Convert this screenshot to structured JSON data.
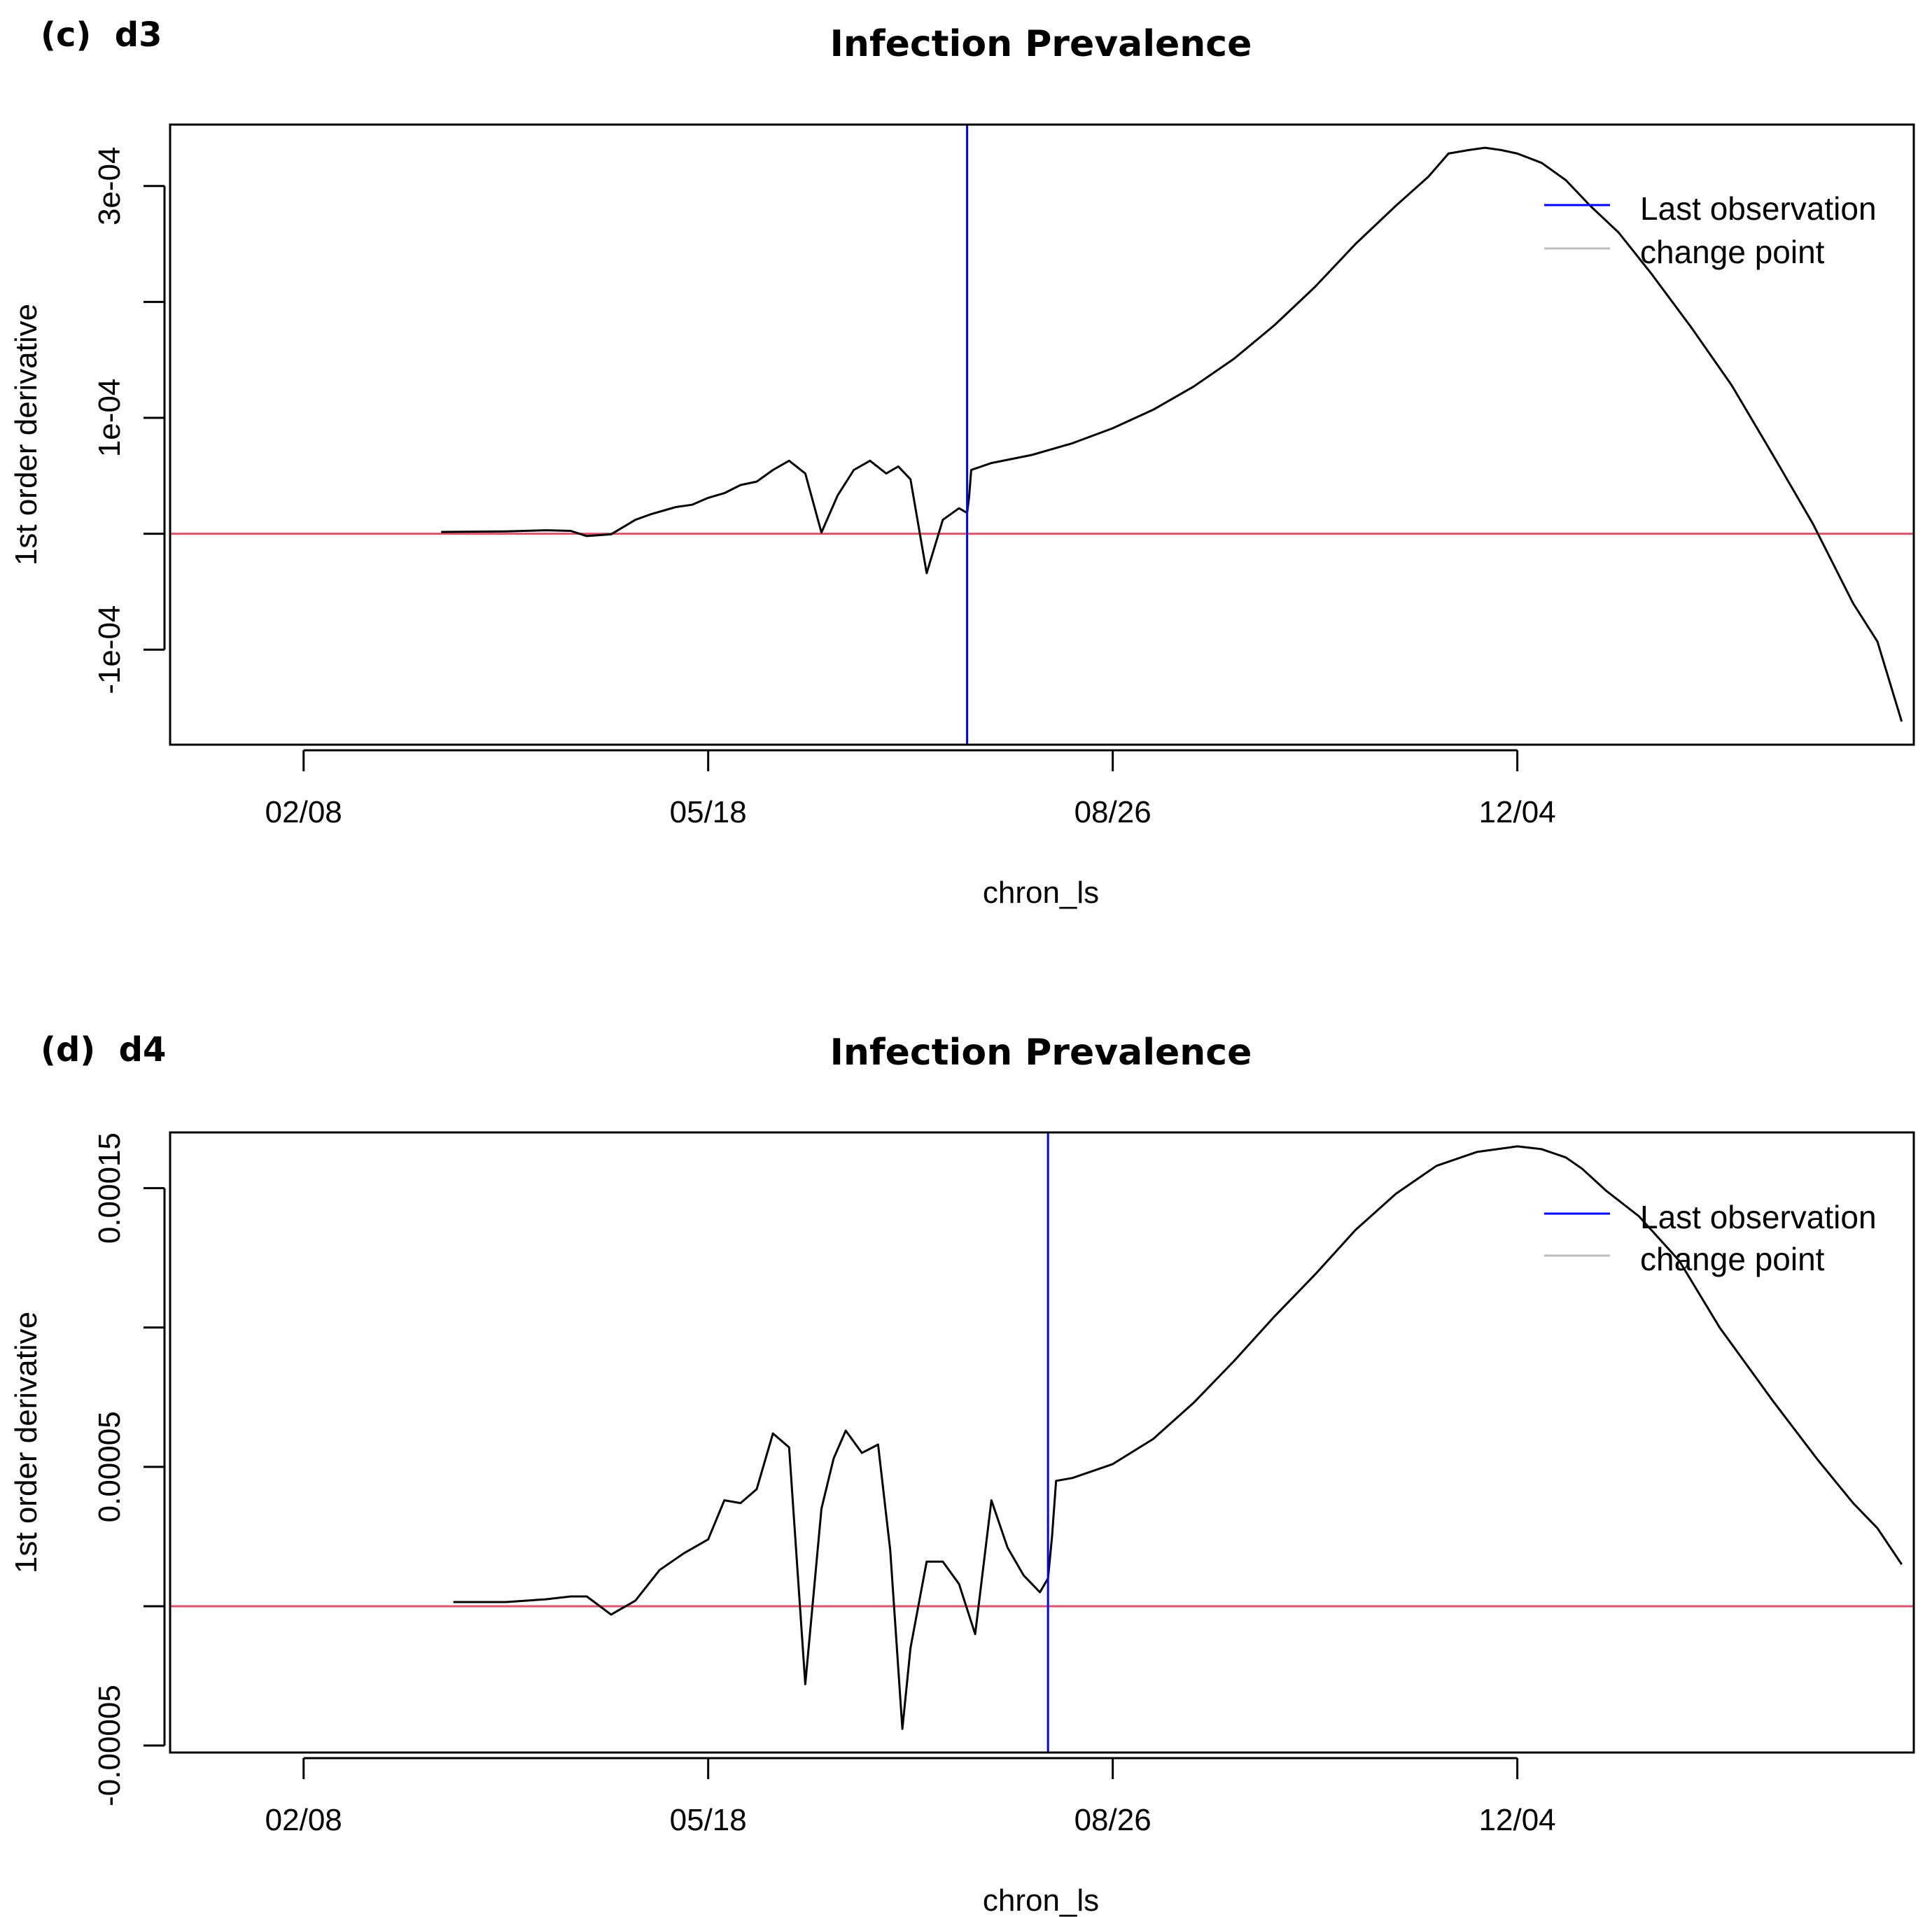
{
  "panels": [
    {
      "panel_label": "(c)  d3",
      "title": "Infection Prevalence",
      "xlabel": "chron_ls",
      "ylabel": "1st order derivative",
      "x_ticks": [
        {
          "value": 0,
          "label": "02/08"
        },
        {
          "value": 100,
          "label": "05/18"
        },
        {
          "value": 200,
          "label": "08/26"
        },
        {
          "value": 300,
          "label": "12/04"
        }
      ],
      "y_ticks": [
        {
          "value": -0.0001,
          "label": "-1e-04"
        },
        {
          "value": 0.0001,
          "label": "1e-04"
        },
        {
          "value": 0.0003,
          "label": "3e-04"
        }
      ],
      "legend": [
        {
          "label": "Last observation",
          "color": "#0000ff"
        },
        {
          "label": "change point",
          "color": "#bebebe"
        }
      ]
    },
    {
      "panel_label": "(d)  d4",
      "title": "Infection Prevalence",
      "xlabel": "chron_ls",
      "ylabel": "1st order derivative",
      "x_ticks": [
        {
          "value": 0,
          "label": "02/08"
        },
        {
          "value": 100,
          "label": "05/18"
        },
        {
          "value": 200,
          "label": "08/26"
        },
        {
          "value": 300,
          "label": "12/04"
        }
      ],
      "y_ticks": [
        {
          "value": -5e-05,
          "label": "-0.00005"
        },
        {
          "value": 5e-05,
          "label": "0.00005"
        },
        {
          "value": 0.00015,
          "label": "0.00015"
        }
      ],
      "legend": [
        {
          "label": "Last observation",
          "color": "#0000ff"
        },
        {
          "label": "change point",
          "color": "#bebebe"
        }
      ]
    }
  ],
  "chart_data": [
    {
      "type": "line",
      "title": "Infection Prevalence",
      "xlabel": "chron_ls",
      "ylabel": "1st order derivative",
      "xlim": [
        -33,
        398
      ],
      "ylim": [
        -0.000182,
        0.000353
      ],
      "grid": false,
      "legend_position": "top-right",
      "colors": {
        "series": "#000000",
        "last_observation": "#0000ff",
        "zero_line": "#df536b",
        "change_point": "#bebebe"
      },
      "zero_line": 0,
      "last_observation_x": 164,
      "series": [
        {
          "name": "1st order derivative",
          "x": [
            34,
            50,
            60,
            66,
            70,
            76,
            82,
            86,
            92,
            96,
            100,
            104,
            108,
            112,
            116,
            120,
            124,
            128,
            132,
            136,
            140,
            144,
            147,
            150,
            154,
            158,
            162,
            164,
            164.5,
            165,
            170,
            180,
            190,
            200,
            210,
            220,
            230,
            240,
            250,
            260,
            270,
            278,
            283,
            288,
            292,
            296,
            300,
            306,
            312,
            318,
            325,
            333,
            343,
            353,
            363,
            373,
            383,
            389,
            395
          ],
          "y": [
            1.5e-06,
            2e-06,
            3e-06,
            2.5e-06,
            -2e-06,
            -5e-07,
            1.2e-05,
            1.7e-05,
            2.3e-05,
            2.5e-05,
            3.1e-05,
            3.5e-05,
            4.2e-05,
            4.5e-05,
            5.5e-05,
            6.3e-05,
            5.2e-05,
            1e-06,
            3.3e-05,
            5.5e-05,
            6.3e-05,
            5.2e-05,
            5.8e-05,
            4.7e-05,
            -3.4e-05,
            1.2e-05,
            2.2e-05,
            1.8e-05,
            3.2e-05,
            5.5e-05,
            6.1e-05,
            6.8e-05,
            7.8e-05,
            9.1e-05,
            0.000107,
            0.000127,
            0.000151,
            0.00018,
            0.000213,
            0.00025,
            0.000283,
            0.000308,
            0.000328,
            0.000331,
            0.000333,
            0.000331,
            0.000328,
            0.00032,
            0.000305,
            0.000283,
            0.00026,
            0.000225,
            0.000178,
            0.000128,
            6.9e-05,
            9e-06,
            -6e-05,
            -9.3e-05,
            -0.000162
          ]
        }
      ]
    },
    {
      "type": "line",
      "title": "Infection Prevalence",
      "xlabel": "chron_ls",
      "ylabel": "1st order derivative",
      "xlim": [
        -33,
        398
      ],
      "ylim": [
        -5.25e-05,
        0.00017
      ],
      "grid": false,
      "legend_position": "top-right",
      "colors": {
        "series": "#000000",
        "last_observation": "#0000ff",
        "zero_line": "#df536b",
        "change_point": "#bebebe"
      },
      "zero_line": 0,
      "last_observation_x": 184,
      "series": [
        {
          "name": "1st order derivative",
          "x": [
            37,
            50,
            60,
            66,
            70,
            76,
            82,
            88,
            94,
            100,
            104,
            108,
            112,
            116,
            120,
            124,
            128,
            131,
            134,
            138,
            142,
            145,
            148,
            150,
            154,
            158,
            162,
            166,
            170,
            174,
            178,
            182,
            184,
            185,
            186,
            190,
            200,
            210,
            220,
            230,
            240,
            250,
            260,
            270,
            280,
            290,
            300,
            306,
            312,
            316,
            322,
            330,
            340,
            350,
            363,
            374,
            383,
            389,
            395
          ],
          "y": [
            1.5e-06,
            1.5e-06,
            2.5e-06,
            3.5e-06,
            3.5e-06,
            -3e-06,
            2e-06,
            1.3e-05,
            1.9e-05,
            2.4e-05,
            3.8e-05,
            3.7e-05,
            4.2e-05,
            6.2e-05,
            5.7e-05,
            -2.8e-05,
            3.5e-05,
            5.3e-05,
            6.3e-05,
            5.5e-05,
            5.8e-05,
            2e-05,
            -4.4e-05,
            -1.5e-05,
            1.6e-05,
            1.6e-05,
            8e-06,
            -1e-05,
            3.8e-05,
            2.1e-05,
            1.1e-05,
            5e-06,
            1e-05,
            2.5e-05,
            4.5e-05,
            4.6e-05,
            5.1e-05,
            6e-05,
            7.3e-05,
            8.8e-05,
            0.000104,
            0.000119,
            0.000135,
            0.000148,
            0.000158,
            0.000163,
            0.000165,
            0.000164,
            0.000161,
            0.000157,
            0.000149,
            0.00014,
            0.000124,
            0.0001,
            7.4e-05,
            5.3e-05,
            3.7e-05,
            2.8e-05,
            1.5e-05
          ]
        }
      ]
    }
  ]
}
